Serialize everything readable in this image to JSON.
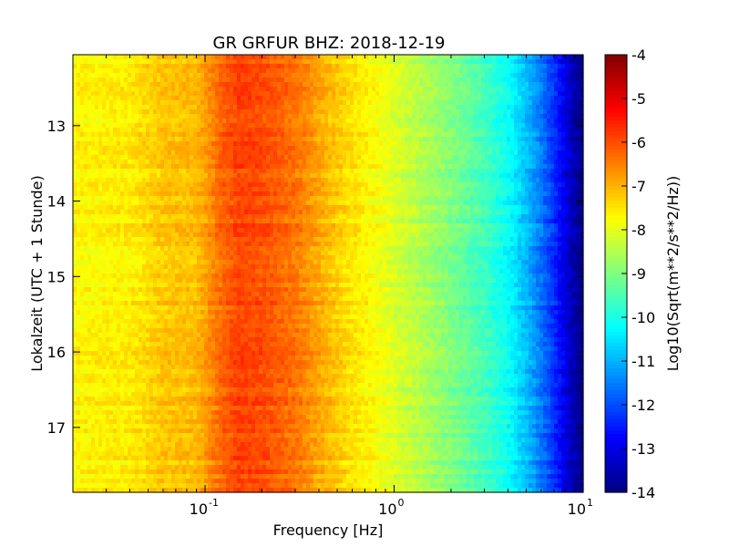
{
  "chart_data": {
    "type": "heatmap",
    "title": "GR GRFUR BHZ: 2018-12-19",
    "xlabel": "Frequency [Hz]",
    "ylabel": "Lokalzeit (UTC + 1 Stunde)",
    "x_scale": "log",
    "xlim": [
      0.02,
      10
    ],
    "x_ticks": [
      {
        "base": "10",
        "exp": "-1",
        "value": 0.1
      },
      {
        "base": "10",
        "exp": "0",
        "value": 1
      },
      {
        "base": "10",
        "exp": "1",
        "value": 10
      }
    ],
    "ylim": [
      12.06,
      17.86
    ],
    "y_inverted": true,
    "y_ticks": [
      {
        "label": "13",
        "value": 13
      },
      {
        "label": "14",
        "value": 14
      },
      {
        "label": "15",
        "value": 15
      },
      {
        "label": "16",
        "value": 16
      },
      {
        "label": "17",
        "value": 17
      }
    ],
    "colorbar": {
      "label": "Log10(Sqrt(m**2/s**2/Hz))",
      "colormap": "jet",
      "range": [
        -14,
        -4
      ],
      "ticks": [
        "-4",
        "-5",
        "-6",
        "-7",
        "-8",
        "-9",
        "-10",
        "-11",
        "-12",
        "-13",
        "-14"
      ]
    },
    "spectrum_profile": {
      "frequency_hz": [
        0.02,
        0.04,
        0.06,
        0.09,
        0.12,
        0.15,
        0.2,
        0.3,
        0.45,
        0.6,
        0.8,
        1.0,
        1.5,
        2.0,
        3.0,
        4.0,
        5.0,
        6.0,
        7.0,
        8.0,
        9.0,
        10.0
      ],
      "value": [
        -7.7,
        -7.6,
        -7.2,
        -7.1,
        -6.3,
        -5.9,
        -6.0,
        -6.4,
        -7.1,
        -7.5,
        -7.8,
        -8.1,
        -8.6,
        -9.0,
        -9.6,
        -10.2,
        -10.9,
        -11.6,
        -12.3,
        -13.0,
        -13.6,
        -14.0
      ]
    }
  }
}
